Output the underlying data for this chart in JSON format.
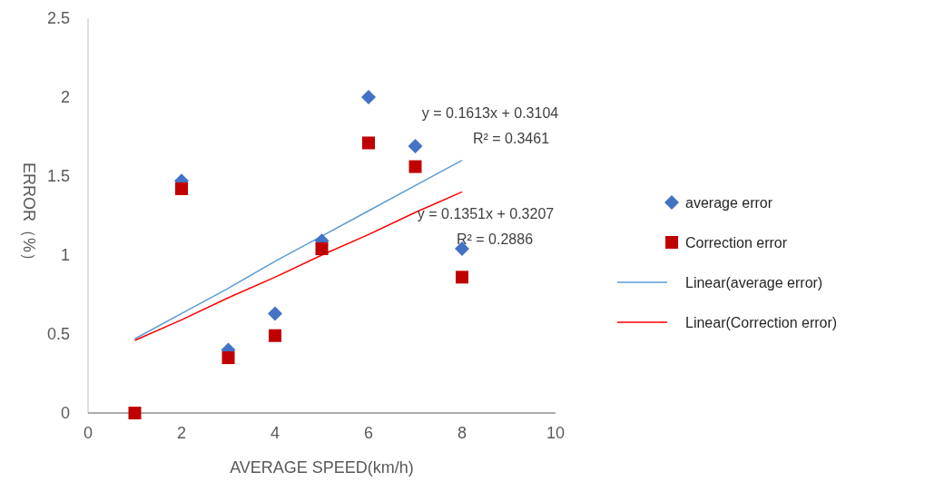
{
  "chart_data": {
    "type": "scatter",
    "xlabel": "AVERAGE SPEED(km/h)",
    "ylabel": "ERROR（%）",
    "x": [
      1,
      2,
      3,
      4,
      5,
      6,
      7,
      8
    ],
    "series": [
      {
        "name": "average error",
        "color": "#4472c4",
        "marker": "diamond",
        "values": [
          null,
          1.47,
          0.4,
          0.63,
          1.09,
          2.0,
          1.69,
          1.04
        ]
      },
      {
        "name": "Correction error",
        "color": "#c00000",
        "marker": "square",
        "values": [
          0,
          1.42,
          0.35,
          0.49,
          1.04,
          1.71,
          1.56,
          0.86
        ]
      },
      {
        "name": "Linear(average error)",
        "type": "line",
        "color": "#5b9bd5",
        "marker": "none",
        "values": [
          0.47,
          0.63,
          0.79,
          0.96,
          1.12,
          1.28,
          1.44,
          1.6
        ]
      },
      {
        "name": "Linear(Correction error)",
        "type": "line",
        "color": "#ff0000",
        "marker": "none",
        "values": [
          0.46,
          0.59,
          0.73,
          0.86,
          1.0,
          1.13,
          1.27,
          1.4
        ]
      }
    ],
    "xlim": [
      0,
      10
    ],
    "xticks": [
      0,
      2,
      4,
      6,
      8,
      10
    ],
    "ylim": [
      0,
      2.5
    ],
    "yticks": [
      0,
      0.5,
      1,
      1.5,
      2,
      2.5
    ],
    "grid": false,
    "legend": "right",
    "annotations": [
      "y = 0.1613x + 0.3104",
      "R² = 0.3461",
      "y = 0.1351x + 0.3207",
      "R² = 0.2886"
    ]
  }
}
